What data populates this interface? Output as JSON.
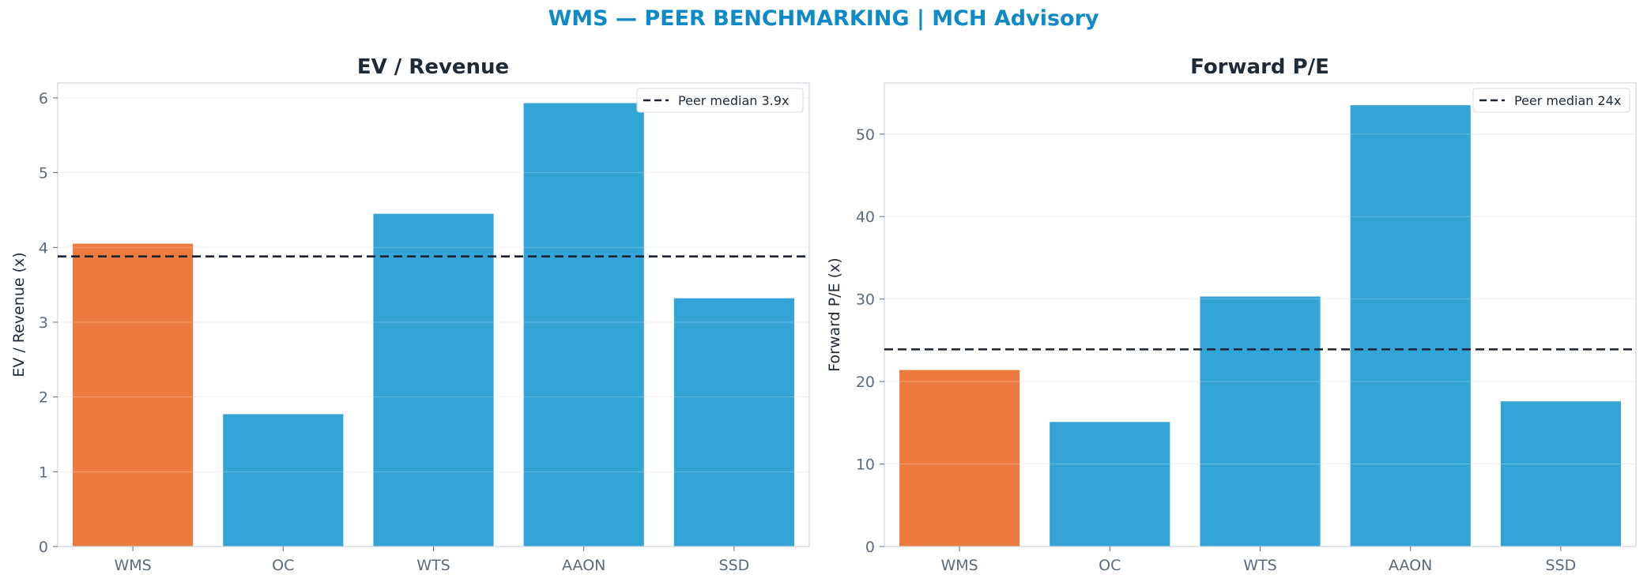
{
  "title": "WMS — PEER BENCHMARKING | MCH Advisory",
  "colors": {
    "highlight": "#ed7b3f",
    "peer": "#34a3d5",
    "median": "#1a2233",
    "title": "#0e8ac7"
  },
  "chart_data": [
    {
      "type": "bar",
      "title": "EV / Revenue",
      "ylabel": "EV / Revenue (x)",
      "categories": [
        "WMS",
        "OC",
        "WTS",
        "AAON",
        "SSD"
      ],
      "values": [
        4.05,
        1.77,
        4.45,
        5.93,
        3.32
      ],
      "highlight": "WMS",
      "ylim": [
        0,
        6.2
      ],
      "yticks": [
        0,
        1,
        2,
        3,
        4,
        5,
        6
      ],
      "ytick_labels": [
        "0",
        "1",
        "2",
        "3",
        "4",
        "5",
        "6"
      ],
      "median": 3.88,
      "legend_label": "Peer median 3.9x",
      "legend_position": "upper right",
      "grid": true
    },
    {
      "type": "bar",
      "title": "Forward P/E",
      "ylabel": "Forward P/E (x)",
      "categories": [
        "WMS",
        "OC",
        "WTS",
        "AAON",
        "SSD"
      ],
      "values": [
        21.4,
        15.1,
        30.3,
        53.5,
        17.6
      ],
      "highlight": "WMS",
      "ylim": [
        0,
        56.2
      ],
      "yticks": [
        0,
        10,
        20,
        30,
        40,
        50
      ],
      "ytick_labels": [
        "0",
        "10",
        "20",
        "30",
        "40",
        "50"
      ],
      "median": 23.9,
      "legend_label": "Peer median 24x",
      "legend_position": "upper right",
      "grid": true
    }
  ]
}
